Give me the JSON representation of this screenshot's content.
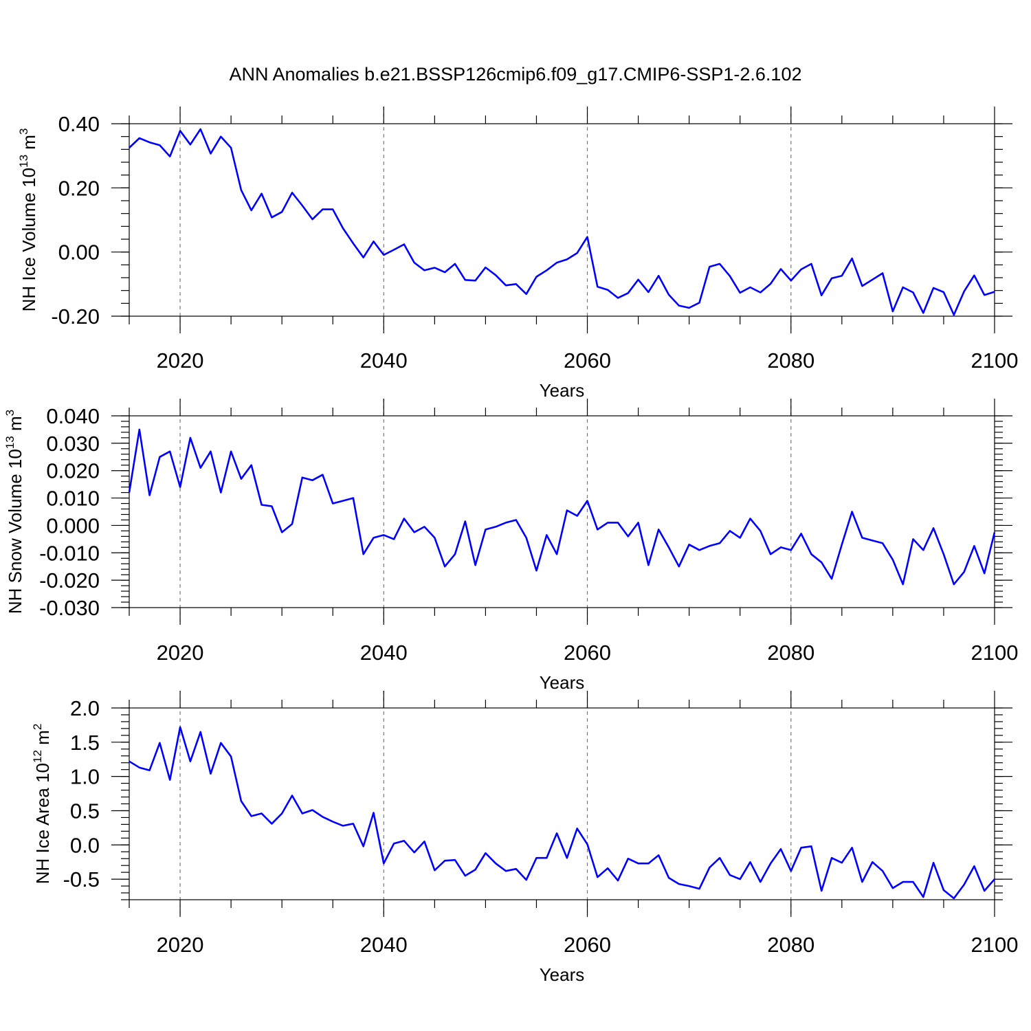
{
  "title": "ANN Anomalies b.e21.BSSP126cmip6.f09_g17.CMIP6-SSP1-2.6.102",
  "series_color": "#0000ff",
  "chart_data": [
    {
      "type": "line",
      "name": "nh-ice-volume",
      "ylabel_main": "NH Ice Volume 10",
      "ylabel_sup": "13",
      "ylabel_unit": "m",
      "ylabel_unit_sup": "3",
      "xlabel": "Years",
      "xlim": [
        2015,
        2100
      ],
      "ylim": [
        -0.2,
        0.4
      ],
      "yticks": [
        0.4,
        0.2,
        0.0,
        -0.2
      ],
      "ytick_labels": [
        "0.40",
        "0.20",
        "0.00",
        "-0.20"
      ],
      "yminor_step": 0.04,
      "xticks": [
        2020,
        2040,
        2060,
        2080,
        2100
      ],
      "xtick_labels": [
        "2020",
        "2040",
        "2060",
        "2080",
        "2100"
      ],
      "grid": "dashed vertical at major x ticks",
      "x_start": 2015,
      "values": [
        0.325,
        0.355,
        0.342,
        0.333,
        0.298,
        0.378,
        0.335,
        0.383,
        0.307,
        0.36,
        0.325,
        0.193,
        0.13,
        0.182,
        0.108,
        0.125,
        0.185,
        0.145,
        0.102,
        0.133,
        0.133,
        0.074,
        0.027,
        -0.017,
        0.033,
        -0.009,
        0.007,
        0.024,
        -0.033,
        -0.057,
        -0.049,
        -0.063,
        -0.037,
        -0.087,
        -0.089,
        -0.048,
        -0.072,
        -0.104,
        -0.1,
        -0.131,
        -0.077,
        -0.057,
        -0.033,
        -0.023,
        -0.003,
        0.047,
        -0.108,
        -0.118,
        -0.143,
        -0.128,
        -0.086,
        -0.125,
        -0.074,
        -0.133,
        -0.167,
        -0.174,
        -0.158,
        -0.046,
        -0.037,
        -0.075,
        -0.127,
        -0.11,
        -0.126,
        -0.099,
        -0.053,
        -0.089,
        -0.054,
        -0.037,
        -0.135,
        -0.082,
        -0.074,
        -0.02,
        -0.106,
        -0.086,
        -0.066,
        -0.185,
        -0.11,
        -0.126,
        -0.19,
        -0.112,
        -0.125,
        -0.196,
        -0.123,
        -0.073,
        -0.134,
        -0.124
      ]
    },
    {
      "type": "line",
      "name": "nh-snow-volume",
      "ylabel_main": "NH Snow Volume 10",
      "ylabel_sup": "13",
      "ylabel_unit": "m",
      "ylabel_unit_sup": "3",
      "xlabel": "Years",
      "xlim": [
        2015,
        2100
      ],
      "ylim": [
        -0.03,
        0.04
      ],
      "yticks": [
        0.04,
        0.03,
        0.02,
        0.01,
        0.0,
        -0.01,
        -0.02,
        -0.03
      ],
      "ytick_labels": [
        "0.040",
        "0.030",
        "0.020",
        "0.010",
        "0.000",
        "-0.010",
        "-0.020",
        "-0.030"
      ],
      "yminor_step": 0.002,
      "xticks": [
        2020,
        2040,
        2060,
        2080,
        2100
      ],
      "xtick_labels": [
        "2020",
        "2040",
        "2060",
        "2080",
        "2100"
      ],
      "grid": "dashed vertical at major x ticks",
      "x_start": 2015,
      "values": [
        0.012,
        0.035,
        0.011,
        0.025,
        0.027,
        0.014,
        0.032,
        0.021,
        0.027,
        0.012,
        0.027,
        0.017,
        0.022,
        0.0075,
        0.007,
        -0.0025,
        0.0005,
        0.0175,
        0.0165,
        0.0185,
        0.008,
        0.009,
        0.01,
        -0.0105,
        -0.0045,
        -0.0035,
        -0.005,
        0.0025,
        -0.0025,
        -0.0005,
        -0.0045,
        -0.015,
        -0.0105,
        0.0015,
        -0.0145,
        -0.0015,
        -0.0005,
        0.001,
        0.002,
        -0.0045,
        -0.0165,
        -0.0035,
        -0.0105,
        0.0055,
        0.0035,
        0.009,
        -0.0015,
        0.001,
        0.001,
        -0.004,
        0.001,
        -0.0145,
        -0.0015,
        -0.008,
        -0.015,
        -0.007,
        -0.009,
        -0.0075,
        -0.0065,
        -0.002,
        -0.0045,
        0.0025,
        -0.002,
        -0.0105,
        -0.008,
        -0.009,
        -0.003,
        -0.0105,
        -0.0135,
        -0.0195,
        -0.007,
        0.005,
        -0.0045,
        -0.0055,
        -0.0065,
        -0.0125,
        -0.0215,
        -0.005,
        -0.009,
        -0.001,
        -0.0105,
        -0.0215,
        -0.017,
        -0.0075,
        -0.0175,
        -0.0025
      ]
    },
    {
      "type": "line",
      "name": "nh-ice-area",
      "ylabel_main": "NH Ice Area 10",
      "ylabel_sup": "12",
      "ylabel_unit": "m",
      "ylabel_unit_sup": "2",
      "xlabel": "Years",
      "xlim": [
        2015,
        2100
      ],
      "ylim": [
        -0.8,
        2.0
      ],
      "yticks": [
        2.0,
        1.5,
        1.0,
        0.5,
        0.0,
        -0.5
      ],
      "ytick_labels": [
        "2.0",
        "1.5",
        "1.0",
        "0.5",
        "0.0",
        "-0.5"
      ],
      "yminor_step": 0.1,
      "xticks": [
        2020,
        2040,
        2060,
        2080,
        2100
      ],
      "xtick_labels": [
        "2020",
        "2040",
        "2060",
        "2080",
        "2100"
      ],
      "grid": "dashed vertical at major x ticks",
      "x_start": 2015,
      "values": [
        1.22,
        1.13,
        1.09,
        1.49,
        0.95,
        1.72,
        1.22,
        1.65,
        1.04,
        1.49,
        1.29,
        0.64,
        0.42,
        0.46,
        0.31,
        0.46,
        0.72,
        0.46,
        0.51,
        0.41,
        0.34,
        0.28,
        0.31,
        -0.02,
        0.47,
        -0.27,
        0.02,
        0.06,
        -0.11,
        0.05,
        -0.37,
        -0.23,
        -0.22,
        -0.45,
        -0.36,
        -0.12,
        -0.27,
        -0.38,
        -0.35,
        -0.51,
        -0.19,
        -0.19,
        0.17,
        -0.19,
        0.24,
        0.01,
        -0.47,
        -0.34,
        -0.52,
        -0.2,
        -0.27,
        -0.27,
        -0.15,
        -0.48,
        -0.57,
        -0.6,
        -0.64,
        -0.33,
        -0.19,
        -0.44,
        -0.5,
        -0.25,
        -0.54,
        -0.27,
        -0.06,
        -0.38,
        -0.04,
        -0.02,
        -0.67,
        -0.19,
        -0.26,
        -0.04,
        -0.54,
        -0.25,
        -0.38,
        -0.63,
        -0.54,
        -0.54,
        -0.76,
        -0.26,
        -0.66,
        -0.78,
        -0.58,
        -0.31,
        -0.67,
        -0.5
      ]
    }
  ]
}
